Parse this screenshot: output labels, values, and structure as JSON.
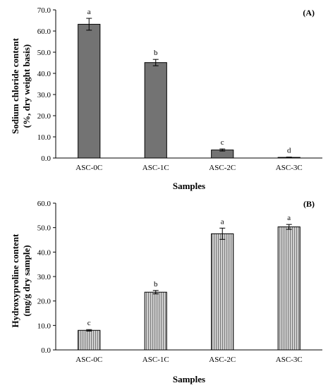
{
  "colors": {
    "panel_a_bar": "#737373",
    "panel_b_bar": "#d8d8d8",
    "panel_b_stripe": "#7a7a7a",
    "axis": "#000000"
  },
  "chart_data": [
    {
      "type": "bar",
      "panel_label": "(A)",
      "categories": [
        "ASC-0C",
        "ASC-1C",
        "ASC-2C",
        "ASC-3C"
      ],
      "values": [
        63.2,
        45.1,
        3.8,
        0.3
      ],
      "errors": [
        2.8,
        1.5,
        0.5,
        0.15
      ],
      "significance": [
        "a",
        "b",
        "c",
        "d"
      ],
      "xlabel": "Samples",
      "ylabel_lines": [
        "Sodium chloride content",
        "(%, dry weight basis)"
      ],
      "ylim": [
        0,
        70
      ],
      "yticks": [
        "0.0",
        "10.0",
        "20.0",
        "30.0",
        "40.0",
        "50.0",
        "60.0",
        "70.0"
      ],
      "grid": false,
      "fill": "solid"
    },
    {
      "type": "bar",
      "panel_label": "(B)",
      "categories": [
        "ASC-0C",
        "ASC-1C",
        "ASC-2C",
        "ASC-3C"
      ],
      "values": [
        8.0,
        23.6,
        47.5,
        50.3
      ],
      "errors": [
        0.3,
        0.7,
        2.3,
        1.0
      ],
      "significance": [
        "c",
        "b",
        "a",
        "a"
      ],
      "xlabel": "Samples",
      "ylabel_lines": [
        "Hydroxyproline content",
        "(mg/g dry sample)"
      ],
      "ylim": [
        0,
        60
      ],
      "yticks": [
        "0.0",
        "10.0",
        "20.0",
        "30.0",
        "40.0",
        "50.0",
        "60.0"
      ],
      "grid": false,
      "fill": "vertical-stripes"
    }
  ]
}
